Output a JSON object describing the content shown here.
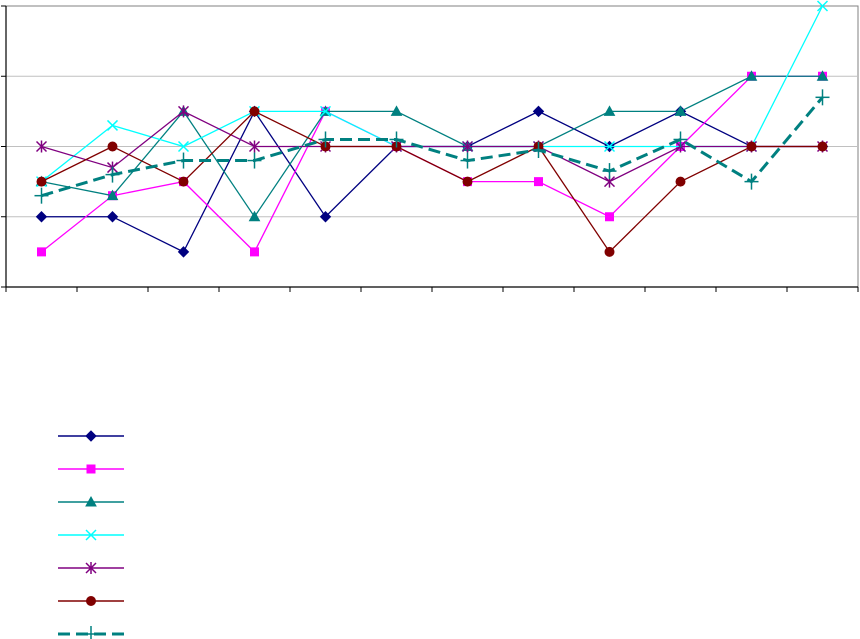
{
  "chart_data": {
    "type": "line",
    "title": "",
    "xlabel": "",
    "ylabel": "",
    "x": [
      1,
      2,
      3,
      4,
      5,
      6,
      7,
      8,
      9,
      10,
      11,
      12
    ],
    "xlim": [
      0.5,
      12.5
    ],
    "ylim": [
      0,
      4
    ],
    "yticks": [
      0,
      1,
      2,
      3,
      4
    ],
    "grid": true,
    "legend": "bottom-left",
    "series": [
      {
        "color": "#000080",
        "marker": "diamond",
        "dashed": false,
        "values": [
          1.0,
          1.0,
          0.5,
          2.5,
          1.0,
          2.0,
          2.0,
          2.5,
          2.0,
          2.5,
          2.0,
          2.0
        ]
      },
      {
        "color": "#ff00ff",
        "marker": "square",
        "dashed": false,
        "values": [
          0.5,
          1.3,
          1.5,
          0.5,
          2.5,
          2.0,
          1.5,
          1.5,
          1.0,
          2.0,
          3.0,
          3.0
        ]
      },
      {
        "color": "#008080",
        "marker": "triangle",
        "dashed": false,
        "values": [
          1.5,
          1.3,
          2.5,
          1.0,
          2.5,
          2.5,
          2.0,
          2.0,
          2.5,
          2.5,
          3.0,
          3.0
        ]
      },
      {
        "color": "#00ffff",
        "marker": "x",
        "dashed": false,
        "values": [
          1.5,
          2.3,
          2.0,
          2.5,
          2.5,
          2.0,
          2.0,
          2.0,
          2.0,
          2.0,
          2.0,
          4.0
        ]
      },
      {
        "color": "#800080",
        "marker": "star",
        "dashed": false,
        "values": [
          2.0,
          1.7,
          2.5,
          2.0,
          2.0,
          2.0,
          2.0,
          2.0,
          1.5,
          2.0,
          2.0,
          2.0
        ]
      },
      {
        "color": "#800000",
        "marker": "circle",
        "dashed": false,
        "values": [
          1.5,
          2.0,
          1.5,
          2.5,
          2.0,
          2.0,
          1.5,
          2.0,
          0.5,
          1.5,
          2.0,
          2.0
        ]
      },
      {
        "color": "#008080",
        "marker": "plus",
        "dashed": true,
        "values": [
          1.3,
          1.6,
          1.8,
          1.8,
          2.1,
          2.1,
          1.8,
          1.95,
          1.65,
          2.1,
          1.5,
          2.7
        ]
      }
    ]
  }
}
